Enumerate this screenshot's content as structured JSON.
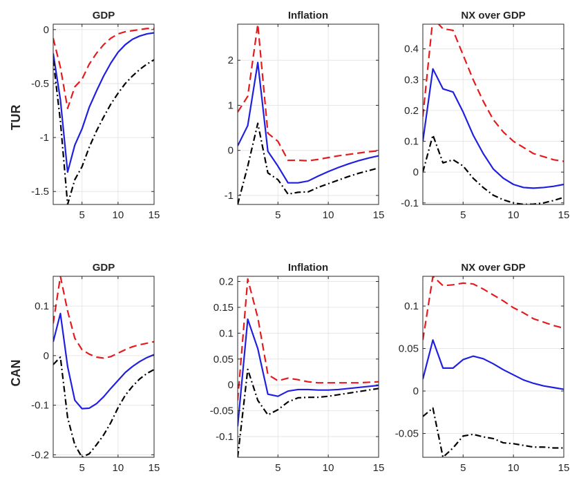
{
  "row_labels": [
    "TUR",
    "CAN"
  ],
  "colors": {
    "upper_band": "#e41a1c",
    "median": "#1f1fe0",
    "lower_band": "#000000",
    "grid": "#e6e6e6",
    "axis": "#262626"
  },
  "chart_data": [
    {
      "type": "line",
      "row_label": "TUR",
      "title": "GDP",
      "x": [
        1,
        2,
        3,
        4,
        5,
        6,
        7,
        8,
        9,
        10,
        11,
        12,
        13,
        14,
        15
      ],
      "xlim": [
        1,
        15
      ],
      "ylim": [
        -1.62,
        0.05
      ],
      "xticks": [
        5,
        10,
        15
      ],
      "xtick_labels": [
        "5",
        "10",
        "15"
      ],
      "yticks": [
        0,
        -0.5,
        -1,
        -1.5
      ],
      "ytick_labels": [
        "0",
        "-0.5",
        "-1",
        "-1.5"
      ],
      "grid": true,
      "series": [
        {
          "style": "upper_band",
          "values": [
            -0.08,
            -0.35,
            -0.73,
            -0.53,
            -0.46,
            -0.32,
            -0.22,
            -0.14,
            -0.08,
            -0.04,
            -0.02,
            -0.01,
            0.0,
            0.01,
            0.01
          ]
        },
        {
          "style": "median",
          "values": [
            -0.22,
            -0.65,
            -1.32,
            -1.07,
            -0.92,
            -0.72,
            -0.57,
            -0.43,
            -0.31,
            -0.21,
            -0.14,
            -0.09,
            -0.06,
            -0.04,
            -0.03
          ]
        },
        {
          "style": "lower_band",
          "values": [
            -0.28,
            -0.85,
            -1.62,
            -1.39,
            -1.27,
            -1.09,
            -0.94,
            -0.81,
            -0.69,
            -0.59,
            -0.5,
            -0.43,
            -0.37,
            -0.32,
            -0.28
          ]
        }
      ]
    },
    {
      "type": "line",
      "row_label": "TUR",
      "title": "Inflation",
      "x": [
        1,
        2,
        3,
        4,
        5,
        6,
        7,
        8,
        9,
        10,
        11,
        12,
        13,
        14,
        15
      ],
      "xlim": [
        1,
        15
      ],
      "ylim": [
        -1.2,
        2.8
      ],
      "xticks": [
        5,
        10,
        15
      ],
      "xtick_labels": [
        "5",
        "10",
        "15"
      ],
      "yticks": [
        2,
        1,
        0,
        -1
      ],
      "ytick_labels": [
        "2",
        "1",
        "0",
        "-1"
      ],
      "grid": true,
      "series": [
        {
          "style": "upper_band",
          "values": [
            0.85,
            1.2,
            2.8,
            0.38,
            0.2,
            -0.22,
            -0.22,
            -0.23,
            -0.2,
            -0.16,
            -0.12,
            -0.09,
            -0.06,
            -0.03,
            -0.01
          ]
        },
        {
          "style": "median",
          "values": [
            0.1,
            0.55,
            1.95,
            -0.02,
            -0.35,
            -0.72,
            -0.72,
            -0.68,
            -0.57,
            -0.47,
            -0.38,
            -0.3,
            -0.23,
            -0.17,
            -0.12
          ]
        },
        {
          "style": "lower_band",
          "values": [
            -1.2,
            -0.35,
            0.6,
            -0.5,
            -0.65,
            -0.97,
            -0.93,
            -0.92,
            -0.82,
            -0.74,
            -0.66,
            -0.58,
            -0.51,
            -0.45,
            -0.39
          ]
        }
      ]
    },
    {
      "type": "line",
      "row_label": "TUR",
      "title": "NX over GDP",
      "x": [
        1,
        2,
        3,
        4,
        5,
        6,
        7,
        8,
        9,
        10,
        11,
        12,
        13,
        14,
        15
      ],
      "xlim": [
        1,
        15
      ],
      "ylim": [
        -0.105,
        0.48
      ],
      "xticks": [
        5,
        10,
        15
      ],
      "xtick_labels": [
        "5",
        "10",
        "15"
      ],
      "yticks": [
        0.4,
        0.3,
        0.2,
        0.1,
        0,
        -0.1
      ],
      "ytick_labels": [
        "0.4",
        "0.3",
        "0.2",
        "0.1",
        "0",
        "-0.1"
      ],
      "grid": true,
      "series": [
        {
          "style": "upper_band",
          "values": [
            0.18,
            0.5,
            0.465,
            0.46,
            0.38,
            0.3,
            0.23,
            0.17,
            0.13,
            0.1,
            0.08,
            0.06,
            0.05,
            0.04,
            0.035
          ]
        },
        {
          "style": "median",
          "values": [
            0.1,
            0.335,
            0.27,
            0.26,
            0.195,
            0.12,
            0.06,
            0.01,
            -0.02,
            -0.04,
            -0.05,
            -0.052,
            -0.05,
            -0.046,
            -0.04
          ]
        },
        {
          "style": "lower_band",
          "values": [
            0.0,
            0.12,
            0.03,
            0.04,
            0.02,
            -0.02,
            -0.05,
            -0.075,
            -0.09,
            -0.1,
            -0.105,
            -0.104,
            -0.1,
            -0.092,
            -0.082
          ]
        }
      ]
    },
    {
      "type": "line",
      "row_label": "CAN",
      "title": "GDP",
      "x": [
        1,
        2,
        3,
        4,
        5,
        6,
        7,
        8,
        9,
        10,
        11,
        12,
        13,
        14,
        15
      ],
      "xlim": [
        1,
        15
      ],
      "ylim": [
        -0.205,
        0.16
      ],
      "xticks": [
        5,
        10,
        15
      ],
      "xtick_labels": [
        "5",
        "10",
        "15"
      ],
      "yticks": [
        0.1,
        0,
        -0.1,
        -0.2
      ],
      "ytick_labels": [
        "0.1",
        "0",
        "-0.1",
        "-0.2"
      ],
      "grid": true,
      "series": [
        {
          "style": "upper_band",
          "values": [
            0.065,
            0.16,
            0.09,
            0.035,
            0.012,
            0.003,
            -0.003,
            -0.005,
            -0.002,
            0.005,
            0.012,
            0.018,
            0.022,
            0.025,
            0.028
          ]
        },
        {
          "style": "median",
          "values": [
            0.028,
            0.085,
            -0.022,
            -0.09,
            -0.107,
            -0.106,
            -0.097,
            -0.083,
            -0.066,
            -0.05,
            -0.034,
            -0.022,
            -0.012,
            -0.004,
            0.002
          ]
        },
        {
          "style": "lower_band",
          "values": [
            -0.018,
            -0.003,
            -0.125,
            -0.18,
            -0.205,
            -0.198,
            -0.18,
            -0.16,
            -0.135,
            -0.105,
            -0.08,
            -0.062,
            -0.047,
            -0.036,
            -0.028
          ]
        }
      ]
    },
    {
      "type": "line",
      "row_label": "CAN",
      "title": "Inflation",
      "x": [
        1,
        2,
        3,
        4,
        5,
        6,
        7,
        8,
        9,
        10,
        11,
        12,
        13,
        14,
        15
      ],
      "xlim": [
        1,
        15
      ],
      "ylim": [
        -0.14,
        0.21
      ],
      "xticks": [
        5,
        10,
        15
      ],
      "xtick_labels": [
        "5",
        "10",
        "15"
      ],
      "yticks": [
        0.2,
        0.15,
        0.1,
        0.05,
        0,
        -0.05,
        -0.1
      ],
      "ytick_labels": [
        "0.2",
        "0.15",
        "0.1",
        "0.05",
        "0",
        "-0.05",
        "-0.1"
      ],
      "grid": true,
      "series": [
        {
          "style": "upper_band",
          "values": [
            -0.03,
            0.205,
            0.13,
            0.02,
            0.008,
            0.013,
            0.01,
            0.006,
            0.004,
            0.004,
            0.004,
            0.004,
            0.004,
            0.005,
            0.006
          ]
        },
        {
          "style": "median",
          "values": [
            -0.08,
            0.127,
            0.07,
            -0.018,
            -0.022,
            -0.012,
            -0.009,
            -0.009,
            -0.01,
            -0.01,
            -0.009,
            -0.007,
            -0.005,
            -0.003,
            -0.001
          ]
        },
        {
          "style": "lower_band",
          "values": [
            -0.14,
            0.03,
            -0.03,
            -0.058,
            -0.048,
            -0.033,
            -0.025,
            -0.024,
            -0.024,
            -0.022,
            -0.019,
            -0.016,
            -0.013,
            -0.01,
            -0.007
          ]
        }
      ]
    },
    {
      "type": "line",
      "row_label": "CAN",
      "title": "NX over GDP",
      "x": [
        1,
        2,
        3,
        4,
        5,
        6,
        7,
        8,
        9,
        10,
        11,
        12,
        13,
        14,
        15
      ],
      "xlim": [
        1,
        15
      ],
      "ylim": [
        -0.078,
        0.135
      ],
      "xticks": [
        5,
        10,
        15
      ],
      "xtick_labels": [
        "5",
        "10",
        "15"
      ],
      "yticks": [
        0.1,
        0.05,
        0,
        -0.05
      ],
      "ytick_labels": [
        "0.1",
        "0.05",
        "0",
        "-0.05"
      ],
      "grid": true,
      "series": [
        {
          "style": "upper_band",
          "values": [
            0.06,
            0.135,
            0.124,
            0.125,
            0.127,
            0.126,
            0.12,
            0.113,
            0.106,
            0.098,
            0.092,
            0.085,
            0.081,
            0.077,
            0.074
          ]
        },
        {
          "style": "median",
          "values": [
            0.014,
            0.06,
            0.027,
            0.027,
            0.037,
            0.041,
            0.038,
            0.032,
            0.025,
            0.019,
            0.013,
            0.009,
            0.006,
            0.004,
            0.002
          ]
        },
        {
          "style": "lower_band",
          "values": [
            -0.03,
            -0.02,
            -0.078,
            -0.067,
            -0.053,
            -0.051,
            -0.054,
            -0.056,
            -0.061,
            -0.062,
            -0.064,
            -0.066,
            -0.066,
            -0.067,
            -0.067
          ]
        }
      ]
    }
  ]
}
